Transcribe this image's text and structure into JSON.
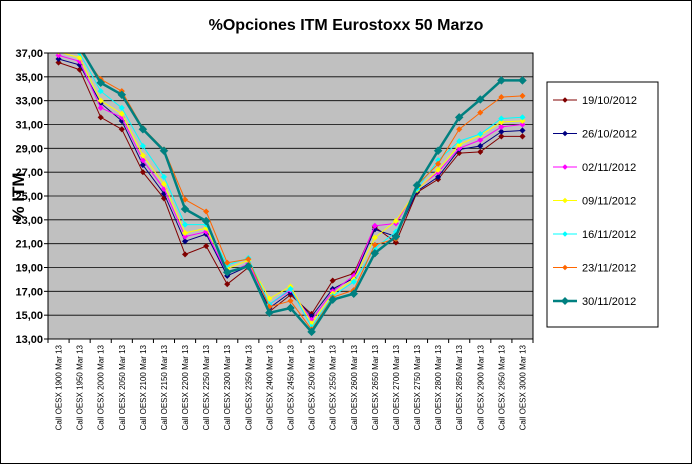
{
  "chart_data": {
    "type": "line",
    "title": "%Opciones ITM Eurostoxx 50 Marzo",
    "xlabel": "",
    "ylabel": "% ITM",
    "ylim": [
      13,
      37
    ],
    "yticks": [
      "13,00",
      "15,00",
      "17,00",
      "19,00",
      "21,00",
      "23,00",
      "25,00",
      "27,00",
      "29,00",
      "31,00",
      "33,00",
      "35,00",
      "37,00"
    ],
    "grid": true,
    "legend_position": "right",
    "categories": [
      "Call OESX 1900 Mar 13",
      "Call OESX 1950 Mar 13",
      "Call OESX 2000 Mar 13",
      "Call OESX 2050 Mar 13",
      "Call OESX 2100 Mar 13",
      "Call OESX 2150 Mar 13",
      "Call OESX 2200 Mar 13",
      "Call OESX 2250 Mar 13",
      "Call OESX 2300 Mar 13",
      "Call OESX 2350 Mar 13",
      "Call OESX 2400 Mar 13",
      "Call OESX 2450 Mar 13",
      "Call OESX 2500 Mar 13",
      "Call OESX 2550 Mar 13",
      "Call OESX 2600 Mar 13",
      "Call OESX 2650 Mar 13",
      "Call OESX 2700 Mar 13",
      "Call OESX 2750 Mar 13",
      "Call OESX 2800 Mar 13",
      "Call OESX 2850 Mar 13",
      "Call OESX 2900 Mar 13",
      "Call OESX 2950 Mar 13",
      "Call OESX 3000 Mar 13"
    ],
    "series": [
      {
        "name": "19/10/2012",
        "color": "#800000",
        "marker": "diamond",
        "width": 1,
        "values": [
          36.2,
          35.6,
          31.6,
          30.6,
          27.0,
          24.8,
          20.1,
          20.8,
          17.6,
          19.0,
          15.3,
          16.7,
          15.1,
          17.9,
          18.5,
          22.4,
          21.1,
          25.3,
          26.4,
          28.6,
          28.7,
          30.0,
          30.0
        ]
      },
      {
        "name": "26/10/2012",
        "color": "#000080",
        "marker": "diamond",
        "width": 1,
        "values": [
          36.5,
          36.0,
          32.8,
          31.3,
          27.6,
          25.2,
          21.2,
          21.8,
          18.3,
          19.1,
          15.6,
          16.9,
          14.9,
          17.2,
          18.1,
          22.2,
          21.6,
          25.4,
          26.6,
          28.9,
          29.2,
          30.4,
          30.5
        ]
      },
      {
        "name": "02/11/2012",
        "color": "#ff00ff",
        "marker": "diamond",
        "width": 1,
        "values": [
          36.8,
          36.3,
          32.4,
          31.6,
          28.0,
          25.6,
          21.6,
          22.0,
          18.5,
          19.3,
          15.9,
          17.1,
          14.6,
          17.0,
          18.3,
          22.5,
          22.7,
          25.6,
          27.0,
          29.0,
          29.7,
          30.8,
          31.0
        ]
      },
      {
        "name": "09/11/2012",
        "color": "#ffff00",
        "marker": "diamond",
        "width": 1,
        "values": [
          37.1,
          36.6,
          33.0,
          31.9,
          28.4,
          26.0,
          21.9,
          22.3,
          18.9,
          19.6,
          16.4,
          17.4,
          14.3,
          16.8,
          18.0,
          21.5,
          22.9,
          25.5,
          27.2,
          29.3,
          30.1,
          31.2,
          31.3
        ]
      },
      {
        "name": "16/11/2012",
        "color": "#00ffff",
        "marker": "diamond",
        "width": 1,
        "values": [
          37.4,
          37.0,
          33.8,
          32.4,
          29.2,
          26.6,
          22.6,
          22.6,
          19.2,
          19.8,
          15.9,
          17.2,
          14.0,
          16.6,
          17.8,
          20.6,
          22.0,
          25.6,
          28.0,
          29.6,
          30.2,
          31.5,
          31.6
        ]
      },
      {
        "name": "23/11/2012",
        "color": "#ff6600",
        "marker": "diamond",
        "width": 1,
        "values": [
          37.8,
          37.2,
          34.8,
          33.8,
          30.7,
          28.9,
          24.7,
          23.7,
          19.4,
          19.7,
          15.7,
          16.2,
          13.8,
          16.5,
          17.1,
          20.9,
          21.4,
          25.9,
          27.7,
          30.6,
          32.0,
          33.3,
          33.4
        ]
      },
      {
        "name": "30/11/2012",
        "color": "#008080",
        "marker": "diamond",
        "width": 2.5,
        "values": [
          38.0,
          37.5,
          34.5,
          33.5,
          30.6,
          28.8,
          23.9,
          22.9,
          18.6,
          19.1,
          15.2,
          15.6,
          13.6,
          16.3,
          16.8,
          20.2,
          21.6,
          25.9,
          28.8,
          31.6,
          33.1,
          34.7,
          34.7
        ]
      }
    ]
  }
}
